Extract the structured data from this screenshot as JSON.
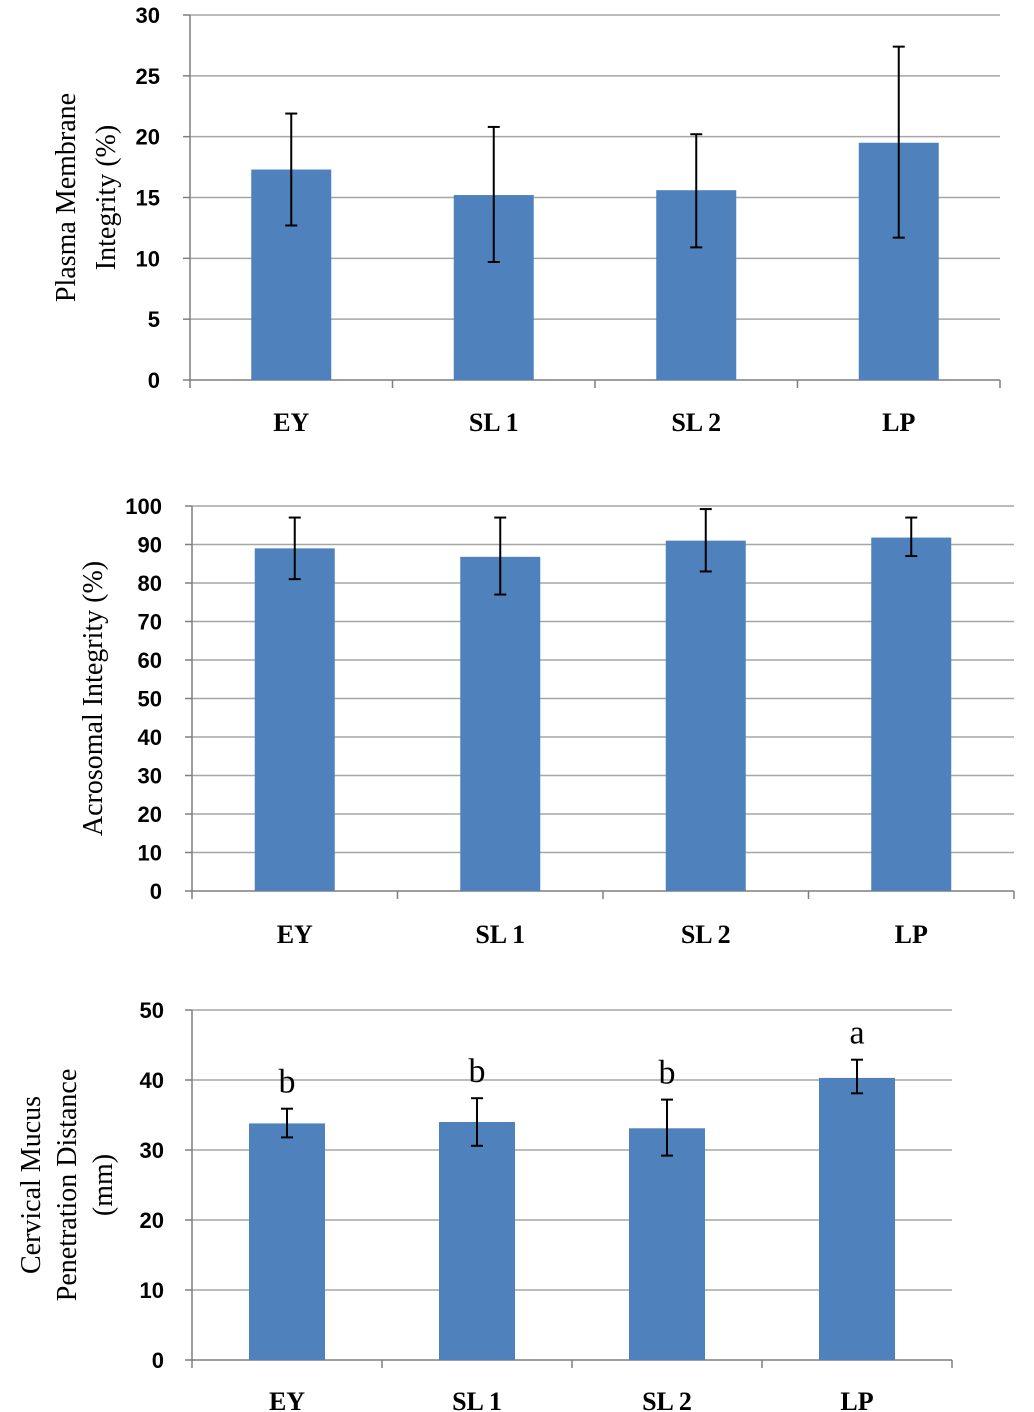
{
  "chart_data": [
    {
      "type": "bar",
      "categories": [
        "EY",
        "SL 1",
        "SL 2",
        "LP"
      ],
      "values": [
        17.3,
        15.2,
        15.6,
        19.5
      ],
      "error_low": [
        12.7,
        9.7,
        10.9,
        11.7
      ],
      "error_high": [
        21.9,
        20.8,
        20.2,
        27.4
      ],
      "ylabel_lines": [
        "Plasma Membrane",
        "Integrity (%)"
      ],
      "ylim": [
        0,
        30
      ],
      "yticks": [
        0,
        5,
        10,
        15,
        20,
        25,
        30
      ],
      "grid": true,
      "annotations": []
    },
    {
      "type": "bar",
      "categories": [
        "EY",
        "SL 1",
        "SL 2",
        "LP"
      ],
      "values": [
        89,
        86.8,
        91,
        91.8
      ],
      "error_low": [
        81,
        77,
        83,
        87
      ],
      "error_high": [
        97,
        97,
        99.2,
        97
      ],
      "ylabel_lines": [
        "Acrosomal Integrity  (%)"
      ],
      "ylim": [
        0,
        100
      ],
      "yticks": [
        0,
        10,
        20,
        30,
        40,
        50,
        60,
        70,
        80,
        90,
        100
      ],
      "grid": true,
      "annotations": []
    },
    {
      "type": "bar",
      "categories": [
        "EY",
        "SL 1",
        "SL 2",
        "LP"
      ],
      "values": [
        33.8,
        34,
        33.1,
        40.3
      ],
      "error_low": [
        31.8,
        30.6,
        29.2,
        38.1
      ],
      "error_high": [
        35.9,
        37.4,
        37.2,
        42.9
      ],
      "ylabel_lines": [
        "Cervical Mucus",
        "Penetration Distance",
        "(mm)"
      ],
      "ylim": [
        0,
        50
      ],
      "yticks": [
        0,
        10,
        20,
        30,
        40,
        50
      ],
      "grid": true,
      "annotations": [
        "b",
        "b",
        "b",
        "a"
      ]
    }
  ],
  "colors": {
    "bar": "#4f81bd",
    "grid": "#a6a6a6",
    "axis": "#7f7f7f"
  }
}
